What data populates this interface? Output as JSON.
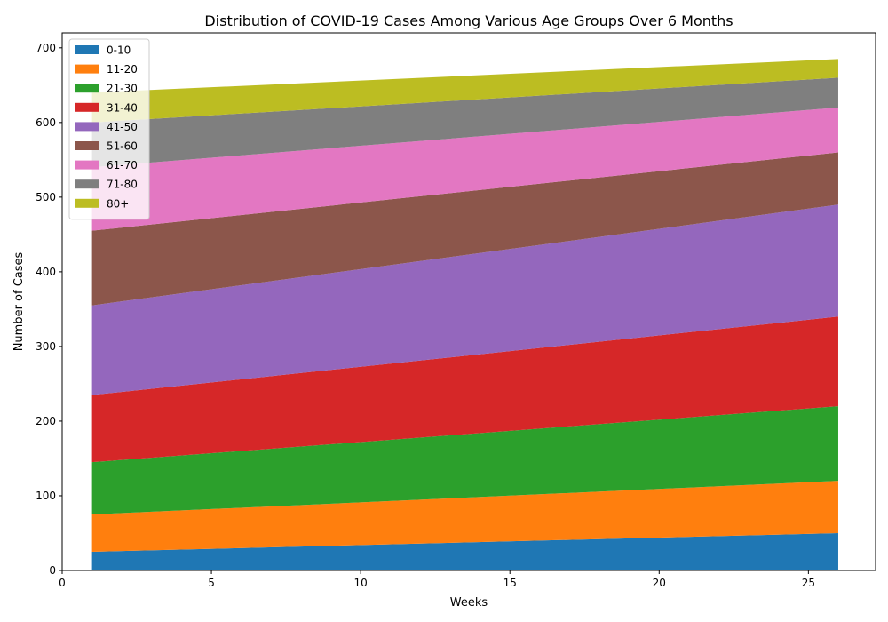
{
  "chart_data": {
    "type": "area",
    "stacked": true,
    "title": "Distribution of COVID-19 Cases Among Various Age Groups Over 6 Months",
    "xlabel": "Weeks",
    "ylabel": "Number of Cases",
    "xlim": [
      0,
      27.25
    ],
    "ylim": [
      0,
      720
    ],
    "xticks": [
      0,
      5,
      10,
      15,
      20,
      25
    ],
    "yticks": [
      0,
      100,
      200,
      300,
      400,
      500,
      600,
      700
    ],
    "x": [
      1,
      26
    ],
    "legend_position": "upper-left",
    "series": [
      {
        "name": "0-10",
        "color": "#1f77b4",
        "values": [
          25,
          50
        ]
      },
      {
        "name": "11-20",
        "color": "#ff7f0e",
        "values": [
          50,
          70
        ]
      },
      {
        "name": "21-30",
        "color": "#2ca02c",
        "values": [
          70,
          100
        ]
      },
      {
        "name": "31-40",
        "color": "#d62728",
        "values": [
          90,
          120
        ]
      },
      {
        "name": "41-50",
        "color": "#9467bd",
        "values": [
          120,
          150
        ]
      },
      {
        "name": "51-60",
        "color": "#8c564b",
        "values": [
          100,
          70
        ]
      },
      {
        "name": "61-70",
        "color": "#e377c2",
        "values": [
          85,
          60
        ]
      },
      {
        "name": "71-80",
        "color": "#7f7f7f",
        "values": [
          60,
          40
        ]
      },
      {
        "name": "80+",
        "color": "#bcbd22",
        "values": [
          40,
          25
        ]
      }
    ]
  }
}
